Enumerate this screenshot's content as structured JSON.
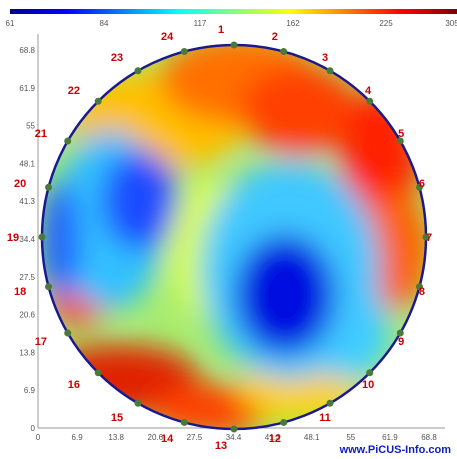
{
  "color_scale": {
    "labels": [
      "61",
      "84",
      "117",
      "162",
      "225",
      "305"
    ],
    "colors": [
      "#00008f",
      "#0000ff",
      "#0080ff",
      "#00ffff",
      "#80ff80",
      "#ffff00",
      "#ff8000",
      "#ff0000",
      "#800000"
    ]
  },
  "y_axis_ticks": [
    "68.8",
    "61.9",
    "55",
    "48.1",
    "41.3",
    "34.4",
    "27.5",
    "20.6",
    "13.8",
    "6.9",
    "0"
  ],
  "x_axis_ticks": [
    "0",
    "6.9",
    "13.8",
    "20.6",
    "27.5",
    "34.4",
    "41.3",
    "48.1",
    "55",
    "61.9",
    "68.8"
  ],
  "sensor_points": [
    "1",
    "2",
    "3",
    "4",
    "5",
    "6",
    "7",
    "8",
    "9",
    "10",
    "11",
    "12",
    "13",
    "14",
    "15",
    "16",
    "17",
    "18",
    "19",
    "20",
    "21",
    "22",
    "23",
    "24"
  ],
  "brand": "www.PiCUS-Info.com",
  "colors": {
    "outline": "#1a1a8c",
    "sensor": "#4a7a3a",
    "sensor_label": "#cc0000"
  }
}
